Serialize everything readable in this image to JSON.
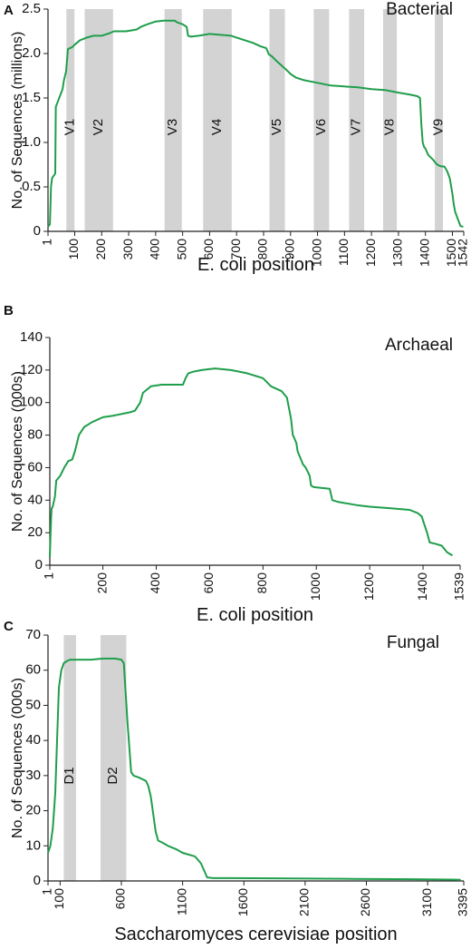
{
  "chart_data": [
    {
      "type": "line",
      "panel_label": "A",
      "title": "Bacterial",
      "xlabel": "E. coli position",
      "ylabel": "No. of Sequences (millions)",
      "xlim": [
        1,
        1542
      ],
      "ylim": [
        0,
        2.5
      ],
      "x_ticks": [
        1,
        100,
        200,
        300,
        400,
        500,
        600,
        700,
        800,
        900,
        1000,
        1100,
        1200,
        1300,
        1400,
        1500,
        1542
      ],
      "y_ticks": [
        0,
        0.5,
        1.0,
        1.5,
        2.0,
        2.5
      ],
      "y_tick_labels": [
        "0",
        "0.5",
        "1.0",
        "1.5",
        "2.0",
        "2.5"
      ],
      "line_color": "#1f9e4b",
      "shade_color": "#d3d3d3",
      "regions": [
        {
          "label": "V1",
          "start": 69,
          "end": 99
        },
        {
          "label": "V2",
          "start": 137,
          "end": 242
        },
        {
          "label": "V3",
          "start": 433,
          "end": 497
        },
        {
          "label": "V4",
          "start": 576,
          "end": 682
        },
        {
          "label": "V5",
          "start": 822,
          "end": 879
        },
        {
          "label": "V6",
          "start": 986,
          "end": 1043
        },
        {
          "label": "V7",
          "start": 1117,
          "end": 1173
        },
        {
          "label": "V8",
          "start": 1243,
          "end": 1294
        },
        {
          "label": "V9",
          "start": 1435,
          "end": 1465
        }
      ],
      "series": [
        {
          "x": [
            1,
            8,
            12,
            16,
            28,
            30,
            55,
            60,
            68,
            75,
            90,
            100,
            120,
            145,
            170,
            200,
            230,
            245,
            290,
            330,
            345,
            370,
            400,
            430,
            470,
            480,
            500,
            515,
            520,
            530,
            560,
            600,
            640,
            680,
            700,
            760,
            790,
            810,
            820,
            830,
            850,
            880,
            900,
            920,
            950,
            1000,
            1050,
            1100,
            1150,
            1200,
            1250,
            1300,
            1340,
            1370,
            1380,
            1385,
            1390,
            1395,
            1400,
            1410,
            1430,
            1440,
            1450,
            1460,
            1470,
            1480,
            1490,
            1500,
            1505,
            1510,
            1520,
            1530,
            1540
          ],
          "y": [
            0.05,
            0.08,
            0.5,
            0.6,
            0.65,
            1.4,
            1.6,
            1.7,
            1.8,
            2.05,
            2.07,
            2.1,
            2.15,
            2.18,
            2.2,
            2.2,
            2.23,
            2.25,
            2.25,
            2.27,
            2.3,
            2.33,
            2.36,
            2.37,
            2.37,
            2.35,
            2.33,
            2.3,
            2.2,
            2.19,
            2.2,
            2.22,
            2.21,
            2.2,
            2.18,
            2.12,
            2.08,
            2.06,
            1.99,
            1.97,
            1.91,
            1.83,
            1.77,
            1.73,
            1.7,
            1.67,
            1.64,
            1.63,
            1.62,
            1.6,
            1.59,
            1.56,
            1.54,
            1.52,
            1.5,
            1.2,
            1.0,
            0.95,
            0.93,
            0.86,
            0.8,
            0.76,
            0.74,
            0.73,
            0.73,
            0.68,
            0.6,
            0.42,
            0.3,
            0.22,
            0.14,
            0.06,
            0.05
          ]
        }
      ]
    },
    {
      "type": "line",
      "panel_label": "B",
      "title": "Archaeal",
      "xlabel": "E. coli position",
      "ylabel": "No. of Sequences (000s)",
      "xlim": [
        1,
        1539
      ],
      "ylim": [
        0,
        140
      ],
      "x_ticks": [
        1,
        200,
        400,
        600,
        800,
        1000,
        1200,
        1400,
        1539
      ],
      "y_ticks": [
        0,
        20,
        40,
        60,
        80,
        100,
        120,
        140
      ],
      "line_color": "#1f9e4b",
      "series": [
        {
          "x": [
            1,
            6,
            8,
            12,
            20,
            25,
            40,
            55,
            70,
            85,
            95,
            110,
            130,
            160,
            200,
            240,
            300,
            320,
            340,
            350,
            380,
            420,
            500,
            510,
            520,
            540,
            570,
            620,
            680,
            740,
            780,
            800,
            830,
            870,
            890,
            905,
            912,
            918,
            925,
            930,
            940,
            950,
            960,
            975,
            980,
            990,
            1050,
            1060,
            1080,
            1150,
            1200,
            1280,
            1350,
            1380,
            1395,
            1405,
            1415,
            1425,
            1450,
            1470,
            1490,
            1500,
            1510
          ],
          "y": [
            5,
            30,
            35,
            36,
            42,
            52,
            55,
            60,
            64,
            65,
            70,
            80,
            85,
            88,
            91,
            92,
            94,
            95,
            100,
            106,
            110,
            111,
            111,
            115,
            118,
            119,
            120,
            121,
            120,
            118,
            116,
            115,
            110,
            107,
            103,
            90,
            80,
            78,
            75,
            70,
            66,
            62,
            60,
            55,
            49,
            48,
            47,
            40,
            39,
            37,
            36,
            35,
            34,
            32,
            30,
            25,
            20,
            14,
            13,
            12,
            8,
            7,
            6
          ]
        }
      ]
    },
    {
      "type": "line",
      "panel_label": "C",
      "title": "Fungal",
      "xlabel": "Saccharomyces cerevisiae position",
      "ylabel": "No. of Sequences (000s)",
      "xlim": [
        1,
        3395
      ],
      "ylim": [
        0,
        70
      ],
      "x_ticks": [
        1,
        100,
        600,
        1100,
        1600,
        2100,
        2600,
        3100,
        3395
      ],
      "y_ticks": [
        0,
        10,
        20,
        30,
        40,
        50,
        60,
        70
      ],
      "line_color": "#1f9e4b",
      "shade_color": "#d3d3d3",
      "regions": [
        {
          "label": "D1",
          "start": 130,
          "end": 230
        },
        {
          "label": "D2",
          "start": 430,
          "end": 640
        }
      ],
      "series": [
        {
          "x": [
            1,
            20,
            40,
            60,
            75,
            90,
            110,
            130,
            150,
            180,
            250,
            350,
            450,
            550,
            600,
            620,
            650,
            680,
            700,
            740,
            800,
            820,
            840,
            860,
            880,
            900,
            930,
            980,
            1050,
            1100,
            1200,
            1250,
            1300,
            1350,
            1400,
            1500,
            2000,
            2500,
            3000,
            3300,
            3370
          ],
          "y": [
            8,
            10,
            15,
            25,
            40,
            55,
            60,
            62,
            62.5,
            63,
            63,
            63,
            63.3,
            63.3,
            63,
            62,
            45,
            31,
            30,
            29.5,
            28.5,
            27,
            24,
            19,
            14,
            11.5,
            11,
            10,
            9,
            8,
            7,
            5,
            1,
            0.8,
            0.8,
            0.8,
            0.7,
            0.6,
            0.5,
            0.4,
            0.3
          ]
        }
      ]
    }
  ]
}
